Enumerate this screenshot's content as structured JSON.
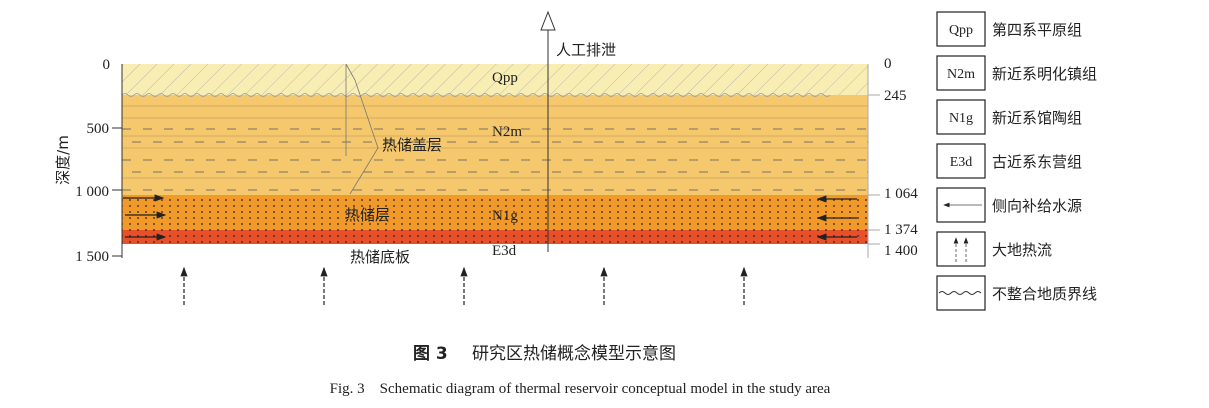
{
  "axis": {
    "label": "深度/m",
    "left_ticks": [
      "0",
      "500",
      "1 000",
      "1 500"
    ],
    "right_ticks": [
      "0",
      "245",
      "1 064",
      "1 374",
      "1 400"
    ]
  },
  "layers": {
    "qpp": "Qpp",
    "n2m": "N2m",
    "n1g": "N1g",
    "e3d": "E3d"
  },
  "labels": {
    "discharge": "人工排泄",
    "caprock": "热储盖层",
    "reservoir": "热储层",
    "floor": "热储底板"
  },
  "legend": [
    {
      "symbol": "Qpp",
      "text": "第四系平原组"
    },
    {
      "symbol": "N2m",
      "text": "新近系明化镇组"
    },
    {
      "symbol": "N1g",
      "text": "新近系馆陶组"
    },
    {
      "symbol": "E3d",
      "text": "古近系东营组"
    },
    {
      "symbol": "lateral-arrow",
      "text": "侧向补给水源"
    },
    {
      "symbol": "heat-flow-arrows",
      "text": "大地热流"
    },
    {
      "symbol": "wavy-line",
      "text": "不整合地质界线"
    }
  ],
  "caption": {
    "cn_number": "图 3",
    "cn_title": "研究区热储概念模型示意图",
    "en": "Fig. 3    Schematic diagram of thermal reservoir conceptual model in the study area"
  },
  "colors": {
    "qpp": "#f8eeb4",
    "n2m": "#f6c86e",
    "n1g": "#f19a2a",
    "e3d": "#e8502a"
  }
}
